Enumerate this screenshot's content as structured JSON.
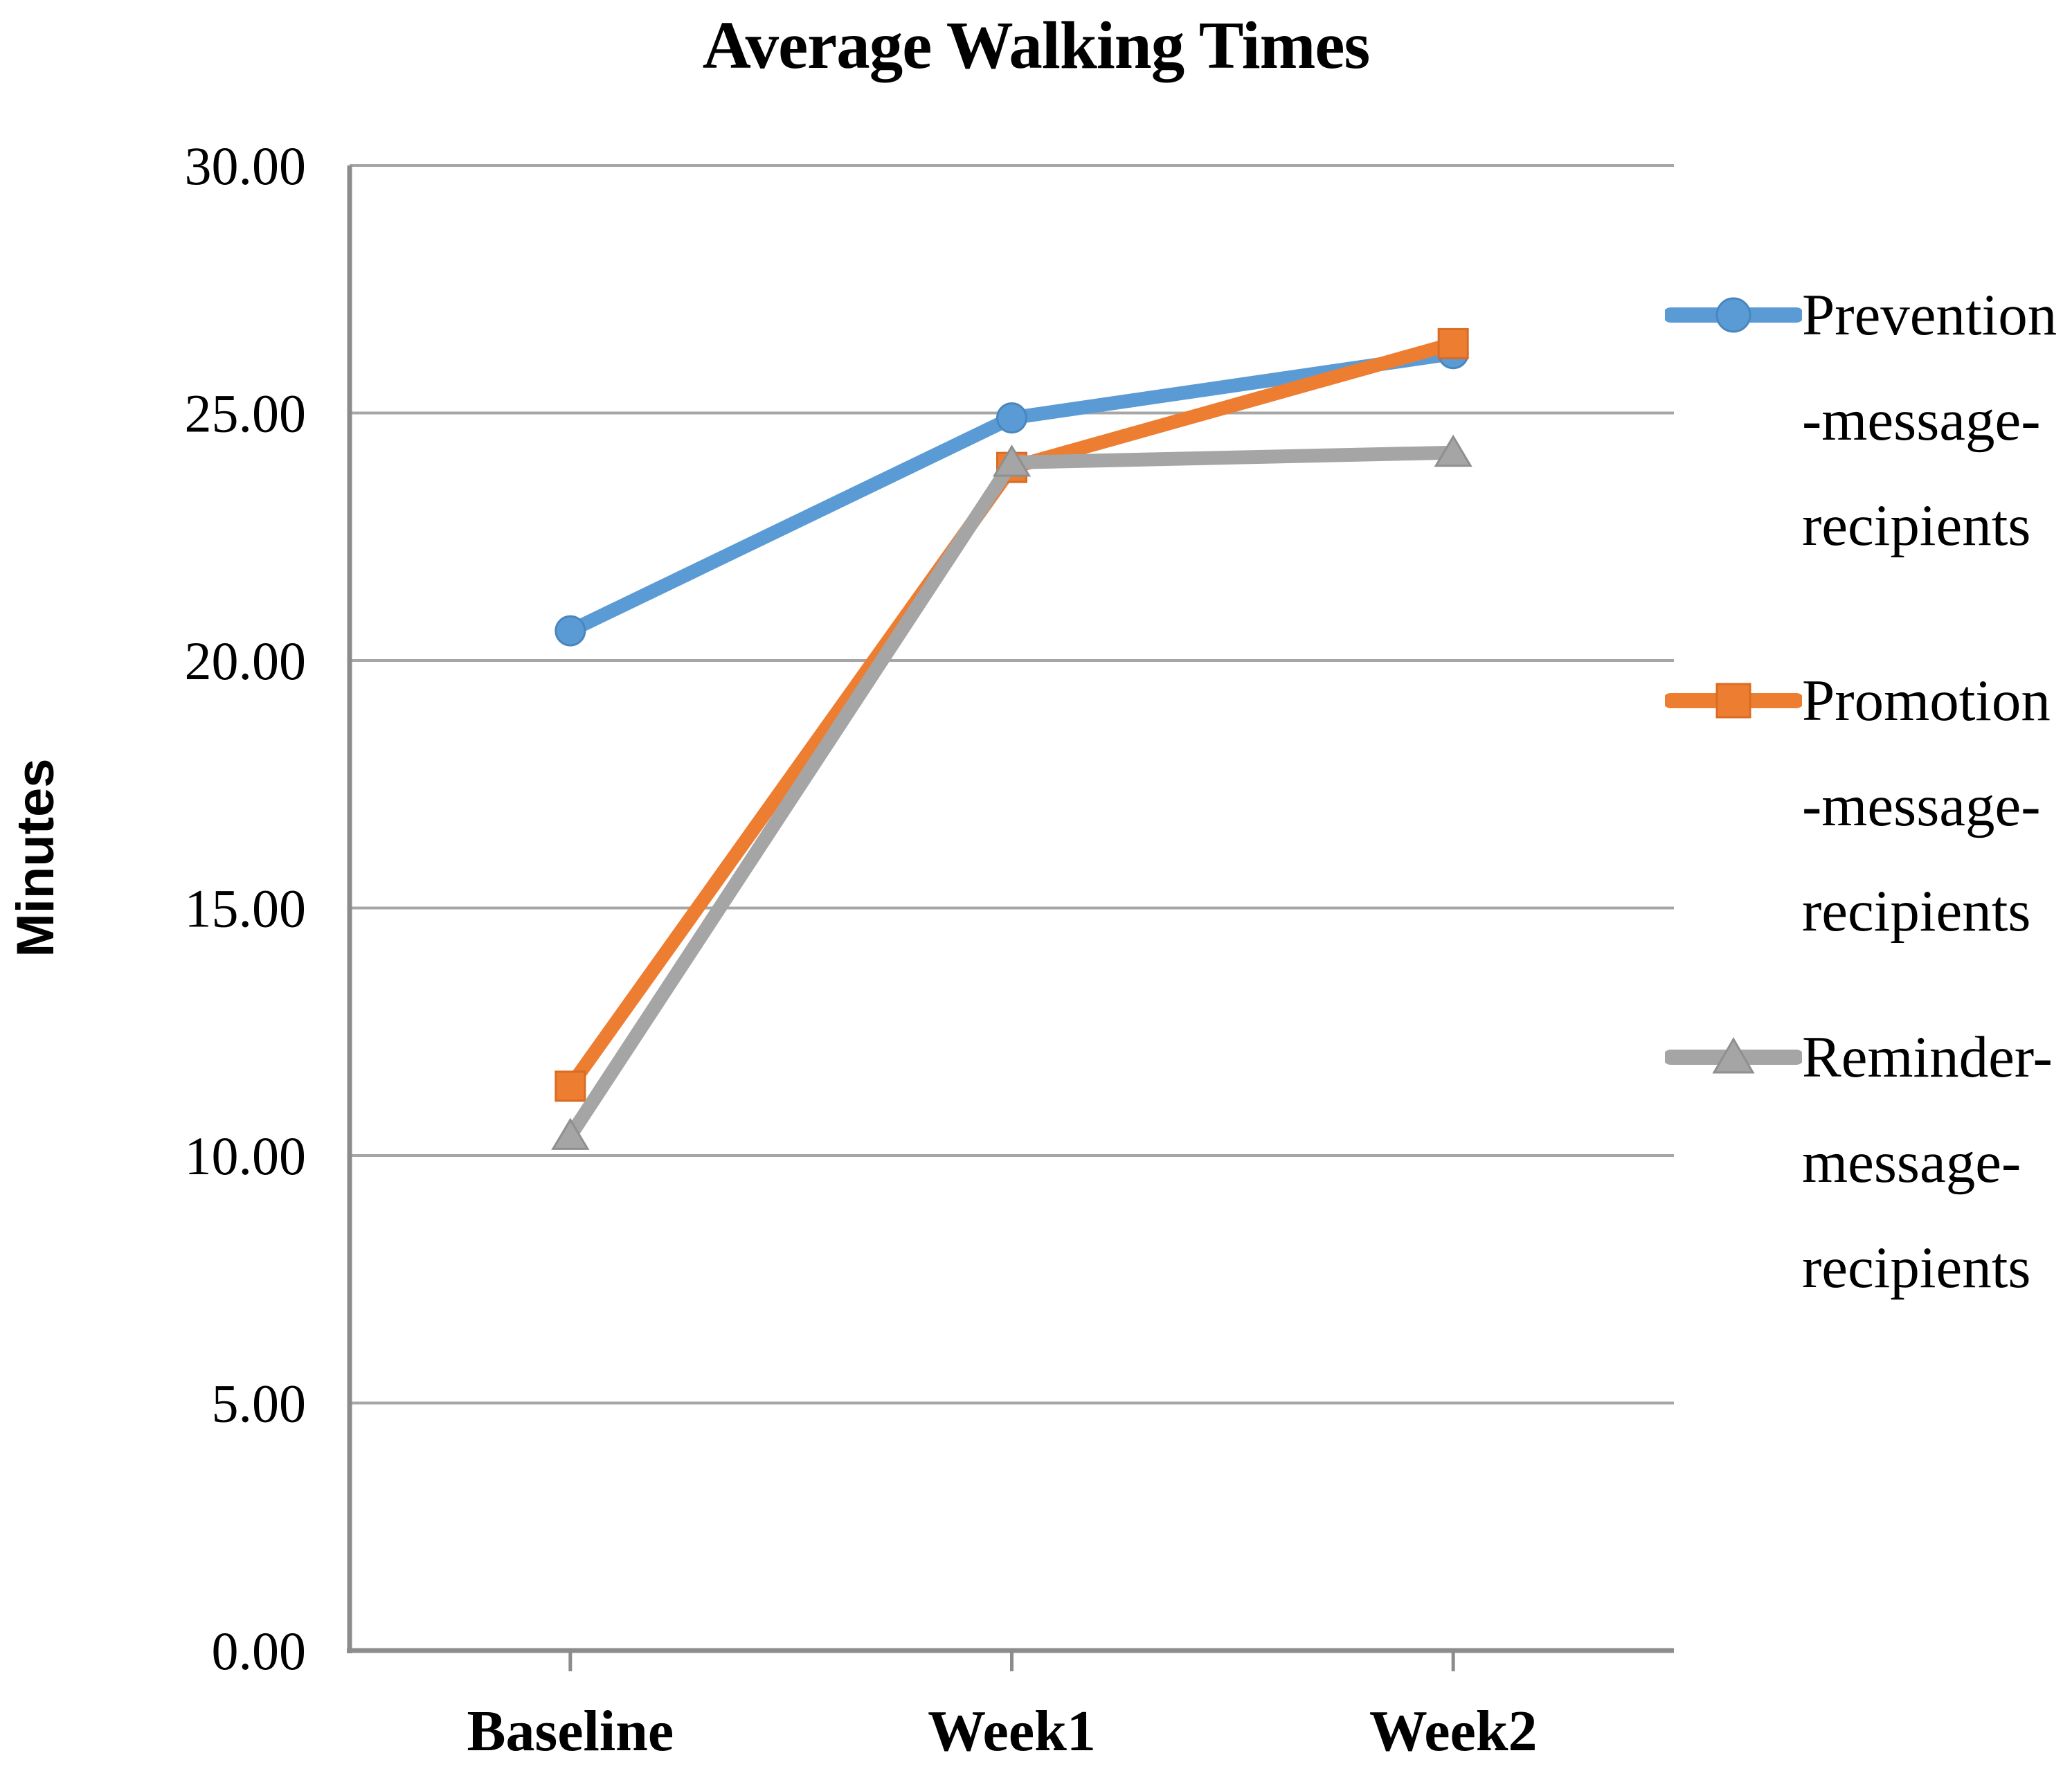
{
  "title": "Average Walking Times",
  "chart_data": {
    "type": "line",
    "title": "Average Walking Times",
    "xlabel": "",
    "ylabel": "Minutes",
    "categories": [
      "Baseline",
      "Week1",
      "Week2"
    ],
    "series": [
      {
        "id": "prevention",
        "name": "Prevention-message-recipients",
        "label_lines": [
          "Prevention",
          "-message-",
          "recipients"
        ],
        "values": [
          20.6,
          24.9,
          26.2
        ],
        "color": "#5B9BD5",
        "edge": "#4A86BE",
        "marker": "circle"
      },
      {
        "id": "promotion",
        "name": "Promotion-message-recipients",
        "label_lines": [
          "Promotion",
          "-message-",
          "recipients"
        ],
        "values": [
          11.4,
          23.9,
          26.4
        ],
        "color": "#ED7D31",
        "edge": "#D96C24",
        "marker": "square"
      },
      {
        "id": "reminder",
        "name": "Reminder-message-recipients",
        "label_lines": [
          "Reminder-",
          "message-",
          "recipients"
        ],
        "values": [
          10.4,
          24.0,
          24.2
        ],
        "color": "#A5A5A5",
        "edge": "#8F8F8F",
        "marker": "triangle"
      }
    ],
    "y_ticks": [
      "30.00",
      "25.00",
      "20.00",
      "15.00",
      "10.00",
      "5.00",
      "0.00"
    ],
    "ylim": [
      0,
      30
    ],
    "y_step": 5,
    "grid": true,
    "legend_position": "right",
    "colors": {
      "gridline": "#A6A6A6",
      "axis": "#8C8C8C",
      "text": "#000000",
      "background": "#FFFFFF"
    }
  }
}
